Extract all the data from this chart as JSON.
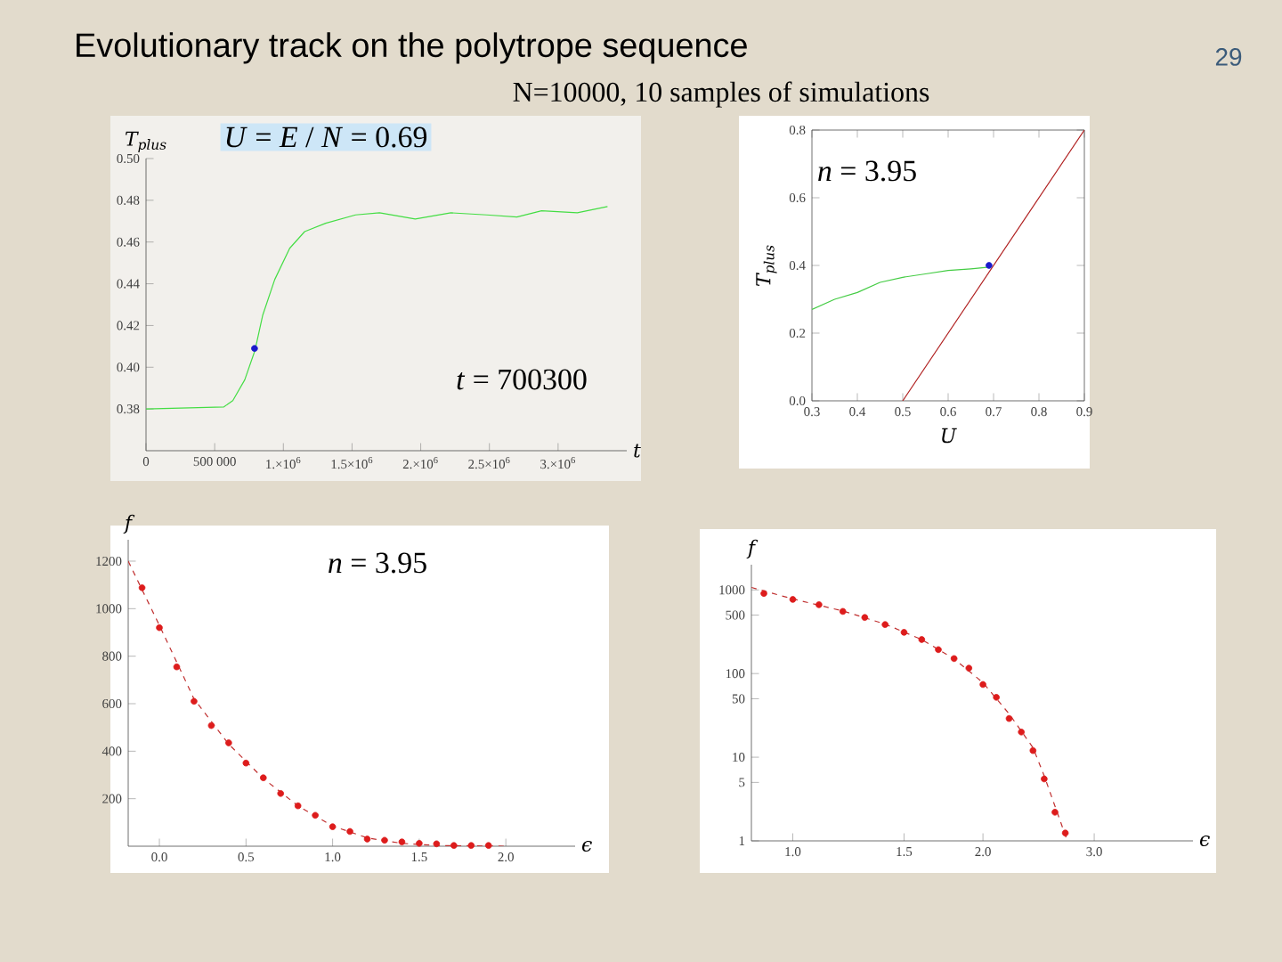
{
  "chart_data": [
    {
      "type": "scatter",
      "title": "Evolutionary track on the polytrope sequence",
      "subtitle": "N=10000, 10 samples of simulations",
      "xlabel": "t",
      "ylabel": "T$_{plus}$",
      "annotations": [
        "*U* = *E* / *N* = 0.69",
        "*t* = 700300",
        "29"
      ],
      "xlim": [
        0,
        3500000
      ],
      "ylim": [
        0.36,
        0.5
      ],
      "xticks": [
        0,
        {
          "value": 500000,
          "label": "500 000"
        },
        {
          "value": 1000000,
          "label": "1.×10$^{6}$"
        },
        {
          "value": 1500000,
          "label": "1.5×10$^{6}$"
        },
        {
          "value": 2000000,
          "label": "2.×10$^{6}$"
        },
        {
          "value": 2500000,
          "label": "2.5×10$^{6}$"
        },
        {
          "value": 3000000,
          "label": "3.×10$^{6}$"
        }
      ],
      "yticks": [
        0.38,
        {
          "value": 0.4,
          "label": "0.40"
        },
        0.42,
        0.44,
        0.46,
        0.48,
        {
          "value": 0.5,
          "label": "0.50"
        }
      ],
      "series": [
        {
          "type": "line",
          "marker": "none",
          "color": "#44dd44",
          "x": [
            0,
            567000,
            632000,
            719000,
            793000,
            850000,
            937000,
            1046000,
            1155000,
            1308000,
            1526000,
            1700000,
            1960000,
            2220000,
            2480000,
            2700000,
            2880000,
            3140000,
            3360000
          ],
          "values": [
            0.38,
            0.381,
            0.384,
            0.394,
            0.408,
            0.425,
            0.442,
            0.457,
            0.465,
            0.469,
            0.473,
            0.474,
            0.471,
            0.474,
            0.473,
            0.472,
            0.475,
            0.474,
            0.477
          ]
        },
        {
          "marker": "circle",
          "color": "#1a1acc",
          "x": [
            790000
          ],
          "values": [
            0.409
          ]
        }
      ]
    },
    {
      "type": "scatter",
      "xlabel": "U",
      "ylabel": "T$_{plus}$",
      "annotations": [
        "*n* = 3.95"
      ],
      "xlim": [
        0.3,
        0.9
      ],
      "ylim": [
        0,
        0.8
      ],
      "xticks": [
        0.3,
        0.4,
        0.5,
        0.6,
        0.7,
        0.8,
        0.9
      ],
      "yticks": [
        {
          "value": 0,
          "label": "0.0"
        },
        0.2,
        0.4,
        0.6,
        0.8
      ],
      "series": [
        {
          "type": "line",
          "marker": "none",
          "color": "#44cc44",
          "x": [
            0.3,
            0.35,
            0.4,
            0.45,
            0.5,
            0.55,
            0.6,
            0.65,
            0.69
          ],
          "values": [
            0.27,
            0.3,
            0.32,
            0.35,
            0.365,
            0.375,
            0.385,
            0.39,
            0.395
          ]
        },
        {
          "type": "line",
          "marker": "none",
          "color": "#b02020",
          "x": [
            0.5,
            0.9
          ],
          "values": [
            0,
            0.8
          ]
        },
        {
          "marker": "circle",
          "color": "#1a1acc",
          "x": [
            0.69
          ],
          "values": [
            0.4
          ]
        }
      ]
    },
    {
      "type": "scatter",
      "xlabel": "ϵ",
      "ylabel": "f",
      "annotations": [
        "*n* = 3.95"
      ],
      "xlim": [
        -0.18,
        2.4
      ],
      "ylim": [
        0,
        1290
      ],
      "xticks": [
        {
          "value": 0,
          "label": "0.0"
        },
        0.5,
        {
          "value": 1,
          "label": "1.0"
        },
        1.5,
        {
          "value": 2,
          "label": "2.0"
        }
      ],
      "yticks": [
        200,
        400,
        600,
        800,
        1000,
        1200
      ],
      "series": [
        {
          "type": "line",
          "marker": "none",
          "line_style": "dashed",
          "color": "#c03030",
          "x": [
            -0.18,
            0,
            0.2,
            0.4,
            0.6,
            0.8,
            1.0,
            1.2,
            1.4,
            1.6,
            2.0
          ],
          "values": [
            1200,
            930,
            620,
            430,
            285,
            170,
            85,
            35,
            12,
            3,
            0
          ]
        },
        {
          "marker": "circle",
          "color": "#dd1c1c",
          "x": [
            -0.1,
            0,
            0.1,
            0.2,
            0.3,
            0.4,
            0.5,
            0.6,
            0.7,
            0.8,
            0.9,
            1.0,
            1.1,
            1.2,
            1.3,
            1.4,
            1.5,
            1.6,
            1.7,
            1.8,
            1.9
          ],
          "values": [
            1088,
            920,
            755,
            610,
            508,
            435,
            350,
            288,
            222,
            170,
            130,
            82,
            62,
            30,
            25,
            18,
            12,
            10,
            3,
            3,
            3
          ]
        }
      ]
    },
    {
      "type": "scatter",
      "xlabel": "ϵ",
      "ylabel": "f",
      "log": "xy",
      "xlim": [
        0.86,
        4.3
      ],
      "ylim": [
        1,
        2000
      ],
      "xticks": [
        {
          "value": 1,
          "label": "1.0"
        },
        1.5,
        {
          "value": 2,
          "label": "2.0"
        },
        {
          "value": 3,
          "label": "3.0"
        }
      ],
      "yticks": [
        1,
        5,
        10,
        50,
        100,
        500,
        1000
      ],
      "series": [
        {
          "type": "line",
          "marker": "none",
          "line_style": "dashed",
          "color": "#c03030",
          "x": [
            0.86,
            1.0,
            1.2,
            1.4,
            1.6,
            1.8,
            2.0,
            2.2,
            2.4,
            2.5,
            2.6,
            2.72
          ],
          "values": [
            1070,
            780,
            560,
            390,
            255,
            150,
            78,
            33,
            13,
            6,
            2.6,
            1
          ]
        },
        {
          "marker": "circle",
          "color": "#dd1c1c",
          "x": [
            0.9,
            1.0,
            1.1,
            1.2,
            1.3,
            1.4,
            1.5,
            1.6,
            1.7,
            1.8,
            1.9,
            2.0,
            2.1,
            2.2,
            2.3,
            2.4,
            2.5,
            2.6,
            2.7
          ],
          "values": [
            906,
            769,
            665,
            553,
            468,
            385,
            311,
            255,
            193,
            151,
            116,
            74,
            52,
            29,
            20,
            12,
            5.5,
            2.2,
            1.24
          ]
        }
      ]
    }
  ]
}
